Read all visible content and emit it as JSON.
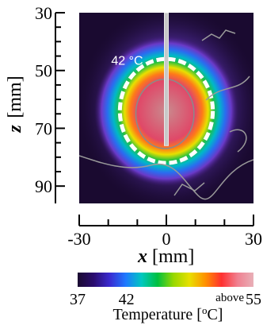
{
  "chart_data": {
    "type": "heatmap",
    "xlabel_var": "x",
    "xlabel_unit": "[mm]",
    "ylabel_var": "z",
    "ylabel_unit": "[mm]",
    "xlim": [
      -30,
      30
    ],
    "ylim": [
      30,
      96
    ],
    "y_inverted": true,
    "x_ticks": [
      -30,
      0,
      30
    ],
    "x_tick_labels": [
      "-30",
      "0",
      "30"
    ],
    "y_ticks": [
      30,
      50,
      70,
      90
    ],
    "y_tick_labels": [
      "30",
      "50",
      "70",
      "90"
    ],
    "annotation": {
      "text": "42 °C",
      "x": -19,
      "z": 48
    },
    "probe": {
      "x": 0,
      "z_start": 30,
      "z_end": 76
    },
    "isotherm_42": {
      "center_x": 0,
      "center_z": 64,
      "half_width_x": 16,
      "half_height_z": 18
    },
    "hot_zone": {
      "center_x": -0.5,
      "center_z": 65,
      "half_width_x": 10,
      "half_height_z": 12
    },
    "colorbar": {
      "min": 37,
      "max": 55,
      "ticks": [
        37,
        42,
        55
      ],
      "tick_labels": [
        "37",
        "42",
        "55"
      ],
      "max_prefix": "above",
      "title": "Temperature [",
      "title_sup": "o",
      "title_end": "C]",
      "colors": [
        "#1a0a30",
        "#2a0b6e",
        "#3a2ad0",
        "#1f78ff",
        "#00c8c0",
        "#00c040",
        "#98d800",
        "#e8e000",
        "#ff9000",
        "#ff3030",
        "#f08090",
        "#e8b0b8"
      ]
    }
  }
}
